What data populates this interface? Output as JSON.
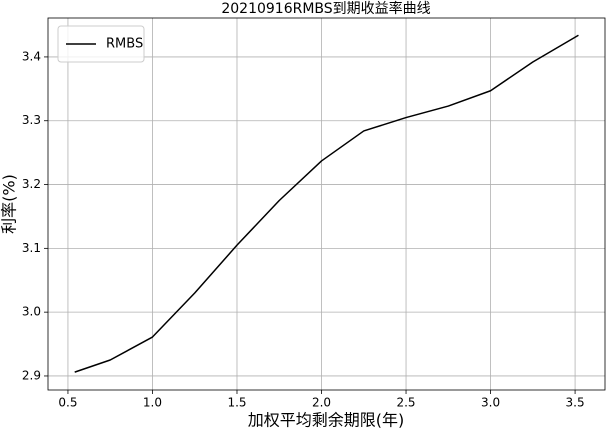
{
  "chart_data": {
    "type": "line",
    "title": "20210916RMBS到期收益率曲线",
    "xlabel": "加权平均剩余期限(年)",
    "ylabel": "利率(%)",
    "x": [
      0.54,
      0.75,
      1.0,
      1.25,
      1.5,
      1.75,
      2.0,
      2.25,
      2.5,
      2.75,
      3.0,
      3.25,
      3.52
    ],
    "series": [
      {
        "name": "RMBS",
        "color": "#000000",
        "values": [
          2.906,
          2.925,
          2.961,
          3.03,
          3.105,
          3.175,
          3.237,
          3.284,
          3.305,
          3.323,
          3.347,
          3.392,
          3.434
        ]
      }
    ],
    "xlim": [
      0.382,
      3.677
    ],
    "ylim": [
      2.878,
      3.461
    ],
    "xticks": [
      0.5,
      {
        "value": 1.0,
        "label": "1.0"
      },
      1.5,
      {
        "value": 2.0,
        "label": "2.0"
      },
      2.5,
      {
        "value": 3.0,
        "label": "3.0"
      },
      3.5
    ],
    "yticks": [
      2.9,
      {
        "value": 3.0,
        "label": "3.0"
      },
      3.1,
      3.2,
      3.3,
      3.4
    ],
    "grid": true,
    "legend": "upper left"
  }
}
